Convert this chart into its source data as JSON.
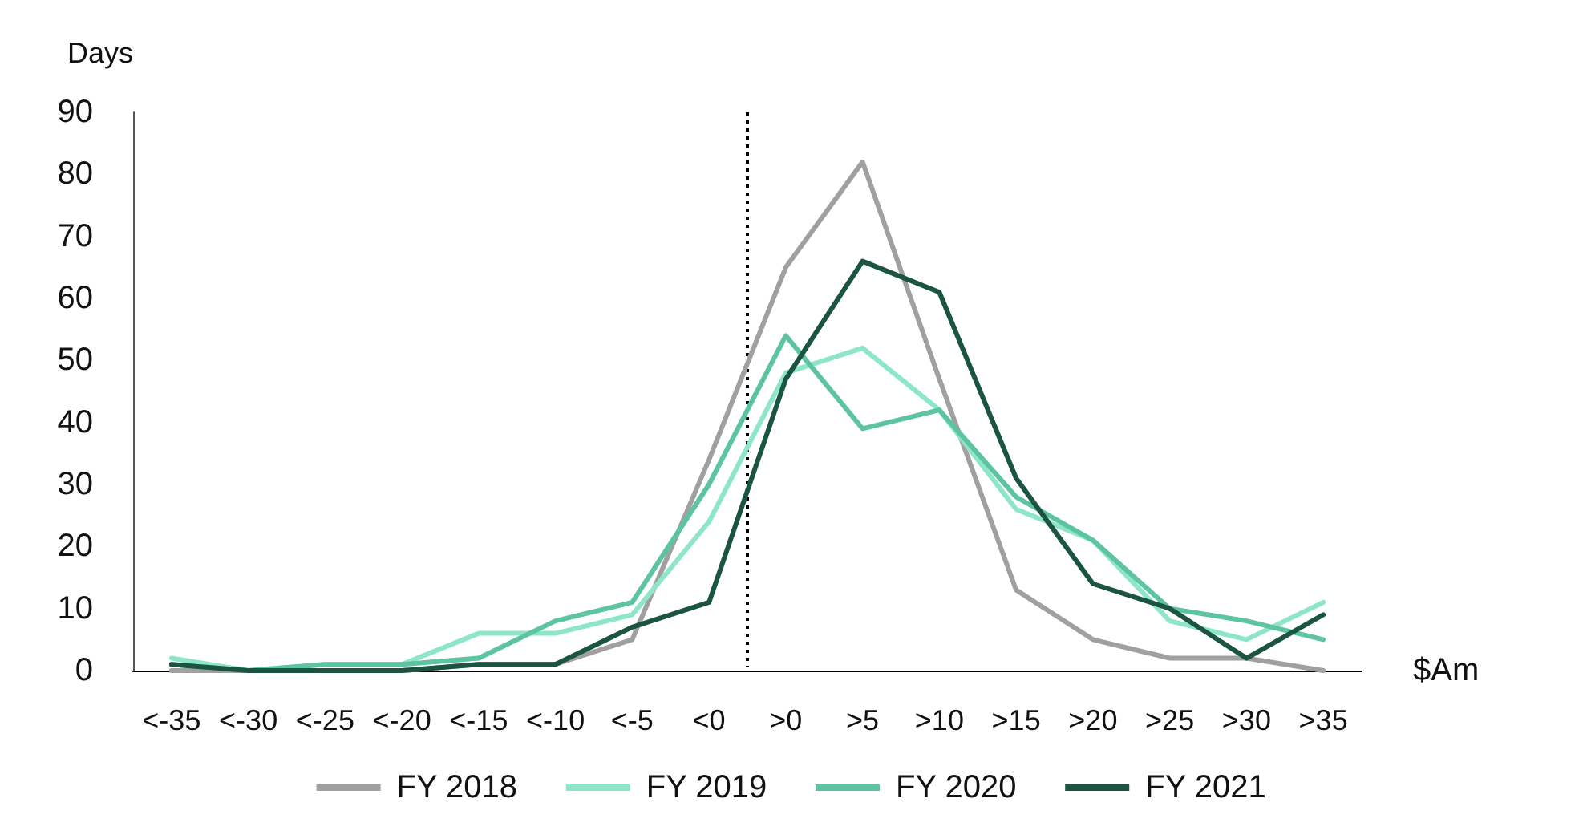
{
  "chart_data": {
    "type": "line",
    "ylabel": "Days",
    "xlabel": "$Am",
    "categories": [
      "<-35",
      "<-30",
      "<-25",
      "<-20",
      "<-15",
      "<-10",
      "<-5",
      "<0",
      ">0",
      ">5",
      ">10",
      ">15",
      ">20",
      ">25",
      ">30",
      ">35"
    ],
    "series": [
      {
        "name": "FY 2018",
        "color": "#a0a0a0",
        "values": [
          0,
          0,
          0,
          0,
          1,
          1,
          5,
          34,
          65,
          82,
          47,
          13,
          5,
          2,
          2,
          0
        ]
      },
      {
        "name": "FY 2019",
        "color": "#8ee6c9",
        "values": [
          2,
          0,
          1,
          1,
          6,
          6,
          9,
          24,
          48,
          52,
          42,
          26,
          21,
          8,
          5,
          11
        ]
      },
      {
        "name": "FY 2020",
        "color": "#5cc49e",
        "values": [
          1,
          0,
          1,
          1,
          2,
          8,
          11,
          30,
          54,
          39,
          42,
          28,
          21,
          10,
          8,
          5
        ]
      },
      {
        "name": "FY 2021",
        "color": "#1b5440",
        "values": [
          1,
          0,
          0,
          0,
          1,
          1,
          7,
          11,
          47,
          66,
          61,
          31,
          14,
          10,
          2,
          9
        ]
      }
    ],
    "ylim": [
      0,
      90
    ],
    "yticks": [
      0,
      10,
      20,
      30,
      40,
      50,
      60,
      70,
      80,
      90
    ],
    "grid": false,
    "legend": "bottom",
    "marker": "none",
    "line_style": "solid"
  }
}
